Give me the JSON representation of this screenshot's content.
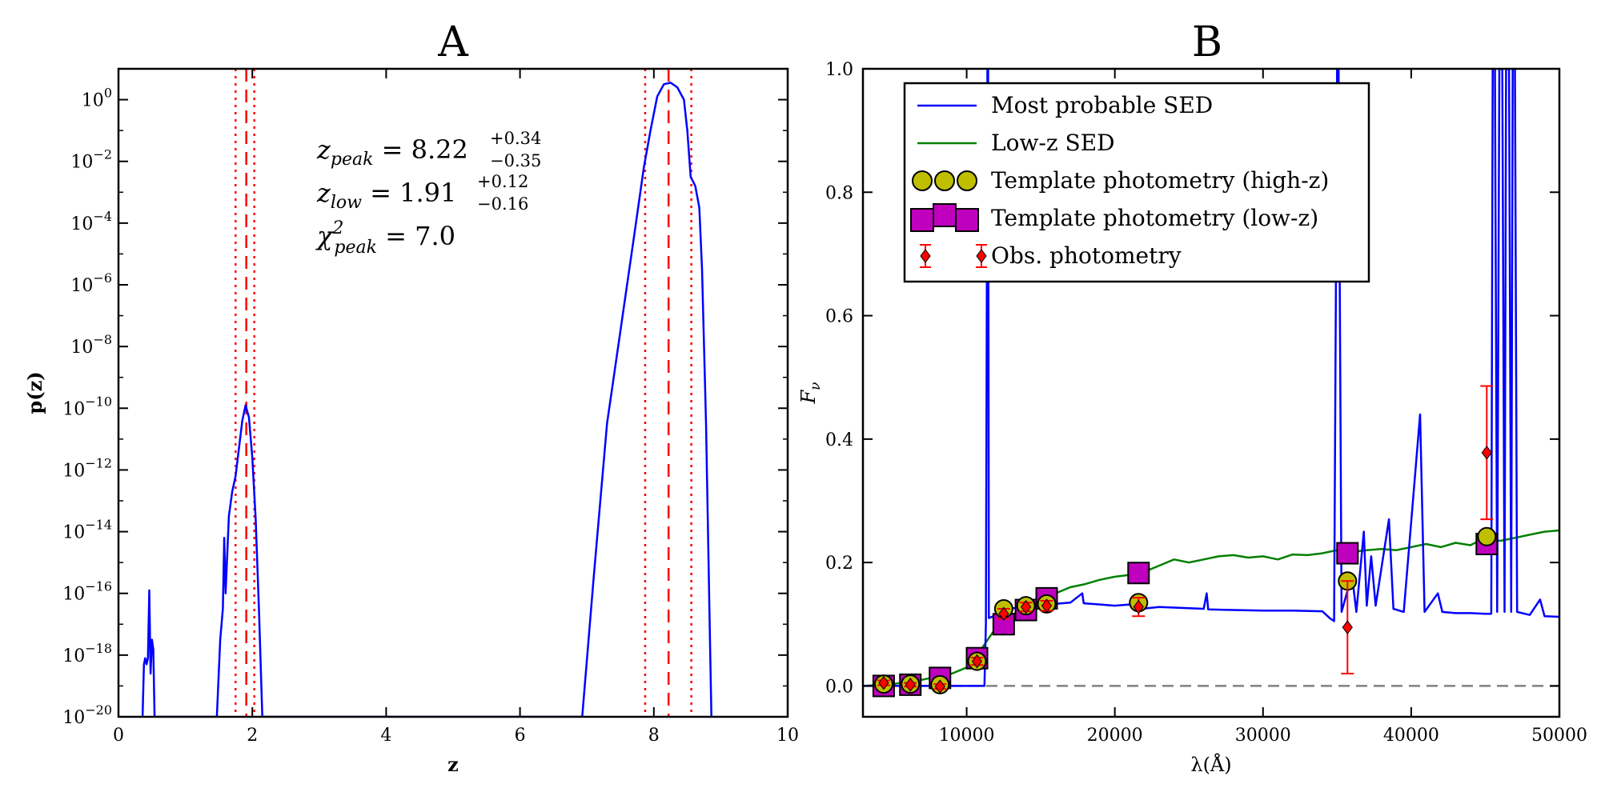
{
  "chart_data": [
    {
      "panel": "A",
      "type": "line",
      "title": "A",
      "xlabel": "z",
      "ylabel": "p(z)",
      "xlim": [
        0,
        10
      ],
      "ylim_log10": [
        -20,
        1
      ],
      "yscale": "log",
      "x_ticks": [
        "0",
        "2",
        "4",
        "6",
        "8",
        "10"
      ],
      "y_ticks": [
        {
          "base": "10",
          "exp": "0"
        },
        {
          "base": "10",
          "exp": "−2"
        },
        {
          "base": "10",
          "exp": "−4"
        },
        {
          "base": "10",
          "exp": "−6"
        },
        {
          "base": "10",
          "exp": "−8"
        },
        {
          "base": "10",
          "exp": "−10"
        },
        {
          "base": "10",
          "exp": "−12"
        },
        {
          "base": "10",
          "exp": "−14"
        },
        {
          "base": "10",
          "exp": "−16"
        },
        {
          "base": "10",
          "exp": "−18"
        },
        {
          "base": "10",
          "exp": "−20"
        }
      ],
      "annotations": {
        "z_peak": {
          "sym": "z",
          "sub": "peak",
          "eq": " = 8.22",
          "sup": "+0.34",
          "subval": "−0.35"
        },
        "z_low": {
          "sym": "z",
          "sub": "low",
          "eq": " = 1.91",
          "sup": "+0.12",
          "subval": "−0.16"
        },
        "chi2": {
          "sym": "χ",
          "sup": "2",
          "sub": "peak",
          "eq": " = 7.0"
        }
      },
      "vlines": {
        "dashed": [
          1.91,
          8.22
        ],
        "dotted": [
          1.75,
          2.03,
          7.87,
          8.56
        ],
        "color": "#ff0000"
      },
      "series": [
        {
          "color": "#0000ff",
          "points_log10": [
            [
              0.36,
              -20
            ],
            [
              0.38,
              -18.3
            ],
            [
              0.4,
              -18.1
            ],
            [
              0.42,
              -18.3
            ],
            [
              0.44,
              -18.1
            ],
            [
              0.46,
              -15.9
            ],
            [
              0.48,
              -18.6
            ],
            [
              0.5,
              -17.5
            ],
            [
              0.52,
              -17.8
            ],
            [
              0.54,
              -20
            ],
            [
              1.47,
              -20
            ],
            [
              1.52,
              -17.5
            ],
            [
              1.56,
              -16.5
            ],
            [
              1.58,
              -14.2
            ],
            [
              1.6,
              -16.0
            ],
            [
              1.65,
              -13.5
            ],
            [
              1.7,
              -12.7
            ],
            [
              1.75,
              -12.2
            ],
            [
              1.8,
              -11.3
            ],
            [
              1.85,
              -10.4
            ],
            [
              1.9,
              -9.9
            ],
            [
              1.95,
              -10.3
            ],
            [
              2.0,
              -11.6
            ],
            [
              2.05,
              -13.6
            ],
            [
              2.1,
              -16.6
            ],
            [
              2.15,
              -20
            ],
            [
              6.93,
              -20
            ],
            [
              7.1,
              -15.5
            ],
            [
              7.3,
              -10.5
            ],
            [
              7.5,
              -7.5
            ],
            [
              7.7,
              -4.5
            ],
            [
              7.85,
              -2.2
            ],
            [
              7.95,
              -1.0
            ],
            [
              8.05,
              0.1
            ],
            [
              8.15,
              0.5
            ],
            [
              8.25,
              0.55
            ],
            [
              8.35,
              0.4
            ],
            [
              8.45,
              0.0
            ],
            [
              8.5,
              -1.0
            ],
            [
              8.55,
              -2.5
            ],
            [
              8.62,
              -2.8
            ],
            [
              8.68,
              -3.5
            ],
            [
              8.72,
              -5.5
            ],
            [
              8.78,
              -10.5
            ],
            [
              8.83,
              -16.5
            ],
            [
              8.86,
              -20
            ]
          ]
        }
      ]
    },
    {
      "panel": "B",
      "type": "line",
      "title": "B",
      "xlabel": "λ(Å)",
      "ylabel": "Fν",
      "ylabel_sym": "F",
      "ylabel_sub": "ν",
      "xlim": [
        3000,
        50000
      ],
      "ylim": [
        -0.05,
        1.0
      ],
      "x_ticks": [
        "10000",
        "20000",
        "30000",
        "40000",
        "50000"
      ],
      "y_ticks": [
        "0.0",
        "0.2",
        "0.4",
        "0.6",
        "0.8",
        "1.0"
      ],
      "hline": {
        "y": 0.0,
        "style": "dashed",
        "color": "#808080"
      },
      "legend": {
        "position": "top-left",
        "entries": [
          {
            "label": "Most probable SED",
            "kind": "line",
            "color": "#0000ff"
          },
          {
            "label": "Low-z SED",
            "kind": "line",
            "color": "#008000"
          },
          {
            "label": "Template photometry (high-z)",
            "kind": "circle",
            "color": "#bfbf00"
          },
          {
            "label": "Template photometry (low-z)",
            "kind": "square",
            "color": "#bf00bf"
          },
          {
            "label": "Obs. photometry",
            "kind": "errorbar",
            "color": "#ff0000"
          }
        ]
      },
      "series": [
        {
          "name": "Most probable SED",
          "color": "#0000ff",
          "points": [
            [
              3000,
              0.0
            ],
            [
              11200,
              0.0
            ],
            [
              11300,
              0.1
            ],
            [
              11400,
              1.0
            ],
            [
              11450,
              1.0
            ],
            [
              11500,
              0.11
            ],
            [
              12000,
              0.115
            ],
            [
              13000,
              0.125
            ],
            [
              14000,
              0.13
            ],
            [
              15000,
              0.135
            ],
            [
              16000,
              0.133
            ],
            [
              17000,
              0.135
            ],
            [
              17800,
              0.15
            ],
            [
              17900,
              0.134
            ],
            [
              19000,
              0.132
            ],
            [
              20000,
              0.13
            ],
            [
              21000,
              0.132
            ],
            [
              21700,
              0.14
            ],
            [
              21800,
              0.125
            ],
            [
              23000,
              0.128
            ],
            [
              24000,
              0.127
            ],
            [
              25000,
              0.126
            ],
            [
              26000,
              0.125
            ],
            [
              26200,
              0.15
            ],
            [
              26300,
              0.124
            ],
            [
              28000,
              0.123
            ],
            [
              30000,
              0.122
            ],
            [
              32000,
              0.122
            ],
            [
              34000,
              0.121
            ],
            [
              34500,
              0.11
            ],
            [
              34800,
              0.105
            ],
            [
              35000,
              1.0
            ],
            [
              35100,
              1.0
            ],
            [
              35300,
              0.12
            ],
            [
              36000,
              0.18
            ],
            [
              36300,
              0.12
            ],
            [
              36800,
              0.25
            ],
            [
              37000,
              0.13
            ],
            [
              37300,
              0.21
            ],
            [
              37600,
              0.13
            ],
            [
              38500,
              0.27
            ],
            [
              38800,
              0.125
            ],
            [
              39500,
              0.12
            ],
            [
              40600,
              0.44
            ],
            [
              40900,
              0.12
            ],
            [
              41800,
              0.15
            ],
            [
              42100,
              0.12
            ],
            [
              43000,
              0.118
            ],
            [
              44000,
              0.118
            ],
            [
              45000,
              0.117
            ],
            [
              45400,
              0.117
            ],
            [
              45500,
              1.0
            ],
            [
              45650,
              1.0
            ],
            [
              45800,
              0.12
            ],
            [
              45950,
              1.0
            ],
            [
              46150,
              1.0
            ],
            [
              46300,
              0.12
            ],
            [
              46400,
              1.0
            ],
            [
              46600,
              1.0
            ],
            [
              46750,
              0.12
            ],
            [
              46850,
              1.0
            ],
            [
              47000,
              1.0
            ],
            [
              47150,
              0.12
            ],
            [
              48000,
              0.115
            ],
            [
              48700,
              0.14
            ],
            [
              49000,
              0.113
            ],
            [
              50000,
              0.112
            ]
          ]
        },
        {
          "name": "Low-z SED",
          "color": "#008000",
          "points": [
            [
              3000,
              0.0
            ],
            [
              5000,
              0.003
            ],
            [
              7000,
              0.01
            ],
            [
              9000,
              0.02
            ],
            [
              10000,
              0.03
            ],
            [
              11000,
              0.06
            ],
            [
              12000,
              0.095
            ],
            [
              13000,
              0.115
            ],
            [
              14000,
              0.125
            ],
            [
              15000,
              0.14
            ],
            [
              16000,
              0.15
            ],
            [
              17000,
              0.16
            ],
            [
              18000,
              0.165
            ],
            [
              19000,
              0.172
            ],
            [
              20000,
              0.177
            ],
            [
              21000,
              0.18
            ],
            [
              22000,
              0.185
            ],
            [
              23000,
              0.195
            ],
            [
              24000,
              0.205
            ],
            [
              25000,
              0.2
            ],
            [
              26000,
              0.205
            ],
            [
              27000,
              0.21
            ],
            [
              28000,
              0.212
            ],
            [
              29000,
              0.208
            ],
            [
              30000,
              0.21
            ],
            [
              31000,
              0.205
            ],
            [
              32000,
              0.213
            ],
            [
              33000,
              0.212
            ],
            [
              34000,
              0.215
            ],
            [
              35000,
              0.22
            ],
            [
              36000,
              0.217
            ],
            [
              37000,
              0.22
            ],
            [
              38000,
              0.222
            ],
            [
              39000,
              0.22
            ],
            [
              40000,
              0.225
            ],
            [
              41000,
              0.23
            ],
            [
              42000,
              0.225
            ],
            [
              43000,
              0.232
            ],
            [
              44000,
              0.228
            ],
            [
              45000,
              0.24
            ],
            [
              46000,
              0.235
            ],
            [
              47000,
              0.24
            ],
            [
              48000,
              0.245
            ],
            [
              49000,
              0.25
            ],
            [
              50000,
              0.252
            ]
          ]
        }
      ],
      "template_highz": [
        [
          4400,
          0.003
        ],
        [
          6200,
          0.003
        ],
        [
          8200,
          0.002
        ],
        [
          10700,
          0.04
        ],
        [
          12500,
          0.125
        ],
        [
          14000,
          0.13
        ],
        [
          15400,
          0.133
        ],
        [
          21600,
          0.135
        ],
        [
          35700,
          0.17
        ],
        [
          45100,
          0.242
        ]
      ],
      "template_lowz": [
        [
          4400,
          0.0
        ],
        [
          6200,
          0.002
        ],
        [
          8200,
          0.013
        ],
        [
          10700,
          0.045
        ],
        [
          12500,
          0.1
        ],
        [
          14000,
          0.123
        ],
        [
          15400,
          0.142
        ],
        [
          21600,
          0.183
        ],
        [
          35700,
          0.215
        ],
        [
          45100,
          0.23
        ]
      ],
      "observed": [
        {
          "x": 4400,
          "y": 0.005,
          "err": 0.004
        },
        {
          "x": 6200,
          "y": 0.002,
          "err": 0.003
        },
        {
          "x": 8200,
          "y": -0.001,
          "err": 0.004
        },
        {
          "x": 10700,
          "y": 0.04,
          "err": 0.006
        },
        {
          "x": 12500,
          "y": 0.117,
          "err": 0.008
        },
        {
          "x": 14000,
          "y": 0.128,
          "err": 0.007
        },
        {
          "x": 15400,
          "y": 0.13,
          "err": 0.008
        },
        {
          "x": 21600,
          "y": 0.128,
          "err": 0.015
        },
        {
          "x": 35700,
          "y": 0.095,
          "err": 0.075
        },
        {
          "x": 45100,
          "y": 0.378,
          "err": 0.108
        }
      ]
    }
  ]
}
